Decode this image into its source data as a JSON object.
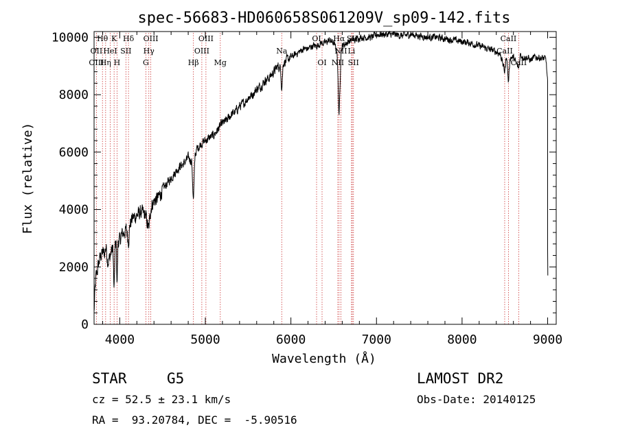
{
  "chart_data": {
    "type": "line",
    "title": "spec-56683-HD060658S061209V_sp09-142.fits",
    "xlabel": "Wavelength (Å)",
    "ylabel": "Flux (relative)",
    "xlim": [
      3700,
      9100
    ],
    "ylim": [
      0,
      10200
    ],
    "xticks": [
      4000,
      5000,
      6000,
      7000,
      8000,
      9000
    ],
    "yticks": [
      0,
      2000,
      4000,
      6000,
      8000,
      10000
    ],
    "grid": false,
    "series": [
      {
        "color": "#000000",
        "x": [
          3700,
          3710,
          3720,
          3740,
          3760,
          3780,
          3800,
          3820,
          3840,
          3860,
          3880,
          3900,
          3920,
          3934,
          3945,
          3960,
          3968,
          3980,
          4000,
          4020,
          4050,
          4080,
          4102,
          4120,
          4150,
          4200,
          4250,
          4300,
          4340,
          4360,
          4380,
          4400,
          4450,
          4500,
          4550,
          4600,
          4650,
          4700,
          4750,
          4800,
          4840,
          4861,
          4880,
          4900,
          4950,
          5000,
          5050,
          5100,
          5150,
          5200,
          5250,
          5300,
          5350,
          5400,
          5450,
          5500,
          5550,
          5600,
          5650,
          5700,
          5750,
          5800,
          5850,
          5880,
          5893,
          5910,
          5950,
          6000,
          6050,
          6100,
          6150,
          6200,
          6250,
          6300,
          6350,
          6400,
          6450,
          6500,
          6540,
          6563,
          6585,
          6600,
          6650,
          6700,
          6750,
          6800,
          6850,
          6900,
          6950,
          7000,
          7100,
          7200,
          7300,
          7400,
          7500,
          7600,
          7700,
          7800,
          7900,
          8000,
          8100,
          8200,
          8300,
          8400,
          8450,
          8498,
          8520,
          8542,
          8560,
          8600,
          8662,
          8680,
          8720,
          8760,
          8800,
          8850,
          8900,
          8950,
          8980,
          9000
        ],
        "y": [
          400,
          1100,
          1600,
          1900,
          2200,
          2400,
          2500,
          2450,
          2700,
          2200,
          2300,
          2500,
          2700,
          1000,
          2700,
          2800,
          1300,
          2900,
          2900,
          3100,
          3200,
          3300,
          2900,
          3500,
          3700,
          3800,
          3900,
          3800,
          3300,
          4000,
          4200,
          4300,
          4400,
          4700,
          4900,
          5100,
          5300,
          5500,
          5600,
          5800,
          5700,
          4300,
          5900,
          6100,
          6300,
          6400,
          6500,
          6600,
          6800,
          7000,
          7100,
          7300,
          7400,
          7600,
          7700,
          7900,
          8000,
          8200,
          8300,
          8500,
          8600,
          8800,
          9000,
          8900,
          8200,
          9100,
          9200,
          9300,
          9400,
          9500,
          9600,
          9600,
          9700,
          9700,
          9800,
          9800,
          9900,
          9800,
          9500,
          7200,
          9500,
          9700,
          9800,
          9900,
          9900,
          10000,
          10000,
          10000,
          10000,
          10100,
          10100,
          10100,
          10050,
          10100,
          10050,
          10000,
          10000,
          9950,
          9900,
          9850,
          9800,
          9700,
          9600,
          9500,
          9400,
          8800,
          9400,
          8400,
          9300,
          9300,
          8900,
          9400,
          9300,
          9300,
          9200,
          9300,
          9300,
          9250,
          9250,
          8400
        ]
      }
    ],
    "lines": [
      {
        "name": "Hθ",
        "wl": 3798,
        "row": 0
      },
      {
        "name": "OII",
        "wl": 3727,
        "row": 1
      },
      {
        "name": "OIII",
        "wl": 3727,
        "row": 2
      },
      {
        "name": "K",
        "wl": 3934,
        "row": 0
      },
      {
        "name": "Hη",
        "wl": 3835,
        "row": 2
      },
      {
        "name": "HeI",
        "wl": 3889,
        "row": 1
      },
      {
        "name": "H",
        "wl": 3968,
        "row": 2
      },
      {
        "name": "SII",
        "wl": 4072,
        "row": 1
      },
      {
        "name": "Hδ",
        "wl": 4102,
        "row": 0
      },
      {
        "name": "OIII",
        "wl": 4363,
        "row": 0
      },
      {
        "name": "Hγ",
        "wl": 4340,
        "row": 1
      },
      {
        "name": "G",
        "wl": 4305,
        "row": 2
      },
      {
        "name": "Hβ",
        "wl": 4861,
        "row": 2
      },
      {
        "name": "OIII",
        "wl": 5007,
        "row": 0
      },
      {
        "name": "OIII",
        "wl": 4959,
        "row": 1
      },
      {
        "name": "Mg",
        "wl": 5175,
        "row": 2
      },
      {
        "name": "Na",
        "wl": 5893,
        "row": 1
      },
      {
        "name": "OI",
        "wl": 6300,
        "row": 0
      },
      {
        "name": "OI",
        "wl": 6364,
        "row": 2
      },
      {
        "name": "Hα",
        "wl": 6563,
        "row": 0
      },
      {
        "name": "NII",
        "wl": 6584,
        "row": 1
      },
      {
        "name": "NII",
        "wl": 6548,
        "row": 2
      },
      {
        "name": "SII",
        "wl": 6717,
        "row": 0
      },
      {
        "name": "Li",
        "wl": 6708,
        "row": 1
      },
      {
        "name": "SII",
        "wl": 6731,
        "row": 2
      },
      {
        "name": "CaII",
        "wl": 8542,
        "row": 0
      },
      {
        "name": "CaII",
        "wl": 8498,
        "row": 1
      },
      {
        "name": "CaII",
        "wl": 8662,
        "row": 2
      }
    ]
  },
  "info": {
    "object_class": "STAR",
    "subclass": "G5",
    "survey": "LAMOST DR2",
    "velocity": "cz = 52.5 ± 23.1 km/s",
    "obs_date": "Obs-Date: 20140125",
    "coords": "RA =  93.20784, DEC =  -5.90516"
  },
  "colors": {
    "spectrum": "#000000",
    "marker_line": "#cc3333",
    "axis": "#000000"
  }
}
